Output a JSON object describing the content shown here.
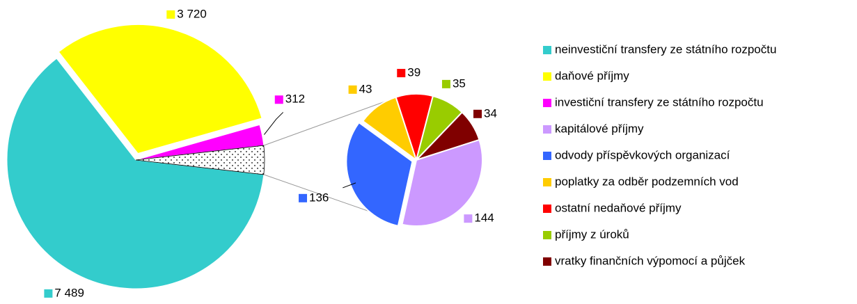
{
  "chart_data": {
    "type": "pie",
    "categories": [
      "neinvestiční transfery ze státního rozpočtu",
      "daňové příjmy",
      "investiční transfery ze státního rozpočtu",
      "kapitálové příjmy",
      "odvody příspěvkových organizací",
      "poplatky za odběr podzemních vod",
      "ostatní nedaňové příjmy",
      "příjmy z úroků",
      "vratky finančních výpomocí a půjček"
    ],
    "values": [
      7489,
      3720,
      312,
      144,
      136,
      43,
      39,
      35,
      34
    ],
    "value_labels": [
      "7 489",
      "3 720",
      "312",
      "144",
      "136",
      "43",
      "39",
      "35",
      "34"
    ],
    "colors": [
      "#33cccc",
      "#ffff00",
      "#ff00ff",
      "#cc99ff",
      "#3366ff",
      "#ffcc00",
      "#ff0000",
      "#99cc00",
      "#800000"
    ],
    "secondary_from": 3,
    "legend": "right"
  }
}
